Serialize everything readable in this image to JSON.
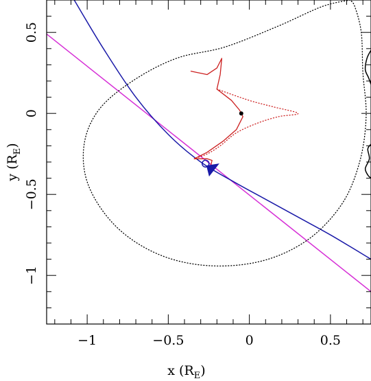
{
  "chart_data": {
    "type": "line",
    "xlabel": {
      "main": "x (R",
      "sub": "E",
      "close": ")"
    },
    "ylabel": {
      "main": "y (R",
      "sub": "E",
      "close": ")"
    },
    "xlim": [
      -1.25,
      0.75
    ],
    "ylim": [
      -1.3,
      0.7
    ],
    "xticks": [
      {
        "value": -1,
        "label": "−1"
      },
      {
        "value": -0.5,
        "label": "−0.5"
      },
      {
        "value": 0,
        "label": "0"
      },
      {
        "value": 0.5,
        "label": "0.5"
      }
    ],
    "yticks": [
      {
        "value": 0.5,
        "label": "0.5"
      },
      {
        "value": 0,
        "label": "0"
      },
      {
        "value": -0.5,
        "label": "−0.5"
      },
      {
        "value": -1,
        "label": "−1"
      }
    ],
    "grid": false,
    "colors": {
      "blue": "#1a1aa8",
      "magenta": "#d62fd6",
      "red": "#cc1f1f",
      "black": "#000000"
    },
    "series": [
      {
        "kind": "straight-line",
        "color": "magenta",
        "points": [
          [
            -1.25,
            0.49
          ],
          [
            0.75,
            -1.1
          ]
        ]
      },
      {
        "kind": "curved-line",
        "color": "blue",
        "points": [
          [
            -1.08,
            0.7
          ],
          [
            -0.9,
            0.4
          ],
          [
            -0.7,
            0.1
          ],
          [
            -0.5,
            -0.13
          ],
          [
            -0.3,
            -0.3
          ],
          [
            -0.1,
            -0.42
          ],
          [
            0.1,
            -0.53
          ],
          [
            0.3,
            -0.64
          ],
          [
            0.5,
            -0.75
          ],
          [
            0.75,
            -0.9
          ]
        ]
      },
      {
        "kind": "dotted-closed-curve",
        "color": "black",
        "points": [
          [
            0.62,
            0.7
          ],
          [
            0.45,
            0.66
          ],
          [
            0.18,
            0.54
          ],
          [
            -0.15,
            0.41
          ],
          [
            -0.45,
            0.34
          ],
          [
            -0.72,
            0.2
          ],
          [
            -0.93,
            0.02
          ],
          [
            -1.02,
            -0.2
          ],
          [
            -0.99,
            -0.45
          ],
          [
            -0.82,
            -0.7
          ],
          [
            -0.56,
            -0.87
          ],
          [
            -0.25,
            -0.94
          ],
          [
            0.08,
            -0.91
          ],
          [
            0.36,
            -0.78
          ],
          [
            0.57,
            -0.56
          ],
          [
            0.68,
            -0.3
          ],
          [
            0.72,
            -0.02
          ],
          [
            0.7,
            0.25
          ],
          [
            0.69,
            0.5
          ],
          [
            0.65,
            0.66
          ],
          [
            0.62,
            0.7
          ]
        ]
      },
      {
        "kind": "solid-curve",
        "color": "black",
        "points": [
          [
            0.75,
            0.39
          ],
          [
            0.725,
            0.34
          ],
          [
            0.715,
            0.27
          ],
          [
            0.735,
            0.22
          ],
          [
            0.75,
            0.18
          ]
        ]
      },
      {
        "kind": "solid-curve",
        "color": "black",
        "points": [
          [
            0.75,
            -0.19
          ],
          [
            0.73,
            -0.22
          ],
          [
            0.74,
            -0.28
          ],
          [
            0.715,
            -0.34
          ],
          [
            0.73,
            -0.38
          ],
          [
            0.75,
            -0.4
          ]
        ]
      },
      {
        "kind": "caustic-solid",
        "color": "red",
        "points": [
          [
            -0.36,
            0.26
          ],
          [
            -0.26,
            0.24
          ],
          [
            -0.2,
            0.28
          ],
          [
            -0.17,
            0.34
          ],
          [
            -0.18,
            0.24
          ],
          [
            -0.2,
            0.15
          ],
          [
            -0.11,
            0.08
          ],
          [
            -0.06,
            0.02
          ],
          [
            -0.04,
            -0.02
          ],
          [
            -0.08,
            -0.1
          ],
          [
            -0.16,
            -0.17
          ],
          [
            -0.26,
            -0.24
          ],
          [
            -0.34,
            -0.28
          ],
          [
            -0.26,
            -0.28
          ],
          [
            -0.23,
            -0.29
          ],
          [
            -0.24,
            -0.33
          ]
        ]
      },
      {
        "kind": "caustic-dotted",
        "color": "red",
        "points": [
          [
            -0.2,
            0.15
          ],
          [
            0.0,
            0.08
          ],
          [
            0.15,
            0.04
          ],
          [
            0.3,
            0.0
          ],
          [
            0.18,
            -0.02
          ],
          [
            0.05,
            -0.06
          ],
          [
            -0.08,
            -0.12
          ],
          [
            -0.18,
            -0.2
          ],
          [
            -0.26,
            -0.25
          ],
          [
            -0.34,
            -0.28
          ]
        ]
      }
    ],
    "markers": [
      {
        "kind": "filled-dot",
        "color": "black",
        "x": -0.05,
        "y": 0.0
      },
      {
        "kind": "open-circle",
        "color": "blue",
        "x": -0.27,
        "y": -0.31
      },
      {
        "kind": "arrow-head",
        "color": "blue",
        "x": -0.24,
        "y": -0.33
      }
    ]
  }
}
